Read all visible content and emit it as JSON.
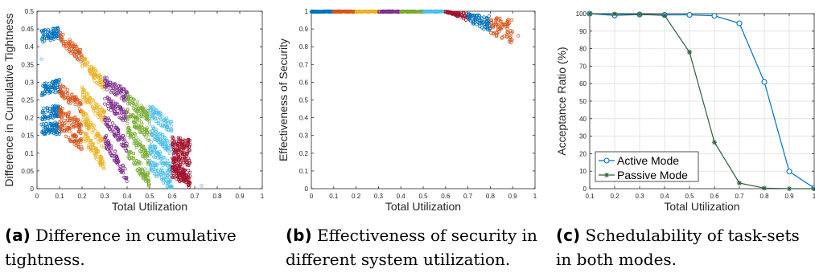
{
  "charts": [
    {
      "id": "a",
      "type": "scatter",
      "xlabel": "Total Utilization",
      "ylabel": "Difference in Cumulative Tightness",
      "xlim": [
        0,
        1
      ],
      "ylim": [
        0,
        0.5
      ],
      "xticks": [
        "0",
        "0.1",
        "0.2",
        "0.3",
        "0.4",
        "0.5",
        "0.6",
        "0.7",
        "0.8",
        "0.9",
        "1"
      ],
      "yticks": [
        "0",
        "0.05",
        "0.1",
        "0.15",
        "0.2",
        "0.25",
        "0.3",
        "0.35",
        "0.4",
        "0.45",
        "0.5"
      ],
      "grid": false,
      "bins": [
        {
          "range": [
            0.02,
            0.1
          ],
          "color": "#0072BD",
          "bands": [
            [
              0.43,
              0.44
            ],
            [
              0.28,
              0.29
            ],
            [
              0.21,
              0.22
            ],
            [
              0.17,
              0.17
            ]
          ]
        },
        {
          "range": [
            0.1,
            0.2
          ],
          "color": "#D95319",
          "bands": [
            [
              0.43,
              0.37
            ],
            [
              0.28,
              0.23
            ],
            [
              0.22,
              0.17
            ],
            [
              0.18,
              0.12
            ]
          ]
        },
        {
          "range": [
            0.2,
            0.3
          ],
          "color": "#EDB120",
          "bands": [
            [
              0.36,
              0.29
            ],
            [
              0.27,
              0.2
            ],
            [
              0.21,
              0.12
            ],
            [
              0.16,
              0.06
            ]
          ]
        },
        {
          "range": [
            0.3,
            0.4
          ],
          "color": "#7E2F8E",
          "bands": [
            [
              0.3,
              0.26
            ],
            [
              0.25,
              0.2
            ],
            [
              0.2,
              0.12
            ],
            [
              0.14,
              0.03
            ]
          ]
        },
        {
          "range": [
            0.4,
            0.5
          ],
          "color": "#77AC30",
          "bands": [
            [
              0.25,
              0.2
            ],
            [
              0.21,
              0.15
            ],
            [
              0.17,
              0.08
            ],
            [
              0.11,
              0.02
            ]
          ]
        },
        {
          "range": [
            0.5,
            0.6
          ],
          "color": "#4DBEEE",
          "bands": [
            [
              0.22,
              0.17
            ],
            [
              0.17,
              0.11
            ],
            [
              0.12,
              0.05
            ],
            [
              0.07,
              0.01
            ]
          ]
        },
        {
          "range": [
            0.6,
            0.68
          ],
          "color": "#A2142F",
          "bands": [
            [
              0.13,
              0.12
            ],
            [
              0.1,
              0.08
            ],
            [
              0.07,
              0.03
            ],
            [
              0.05,
              0.02
            ]
          ]
        }
      ],
      "outliers": [
        [
          0.02,
          0.365
        ],
        [
          0.73,
          0.008
        ]
      ]
    },
    {
      "id": "b",
      "type": "scatter",
      "xlabel": "Total Utilization",
      "ylabel": "Effectiveness of Security",
      "xlim": [
        0,
        1
      ],
      "ylim": [
        0,
        1
      ],
      "xticks": [
        "0",
        "0.1",
        "0.2",
        "0.3",
        "0.4",
        "0.5",
        "0.6",
        "0.7",
        "0.8",
        "0.9",
        "1"
      ],
      "yticks": [
        "0",
        "0.1",
        "0.2",
        "0.3",
        "0.4",
        "0.5",
        "0.6",
        "0.7",
        "0.8",
        "0.9",
        "1"
      ],
      "grid": false,
      "bins": [
        {
          "range": [
            0,
            0.1
          ],
          "color": "#0072BD"
        },
        {
          "range": [
            0.1,
            0.2
          ],
          "color": "#D95319"
        },
        {
          "range": [
            0.2,
            0.3
          ],
          "color": "#EDB120"
        },
        {
          "range": [
            0.3,
            0.4
          ],
          "color": "#7E2F8E"
        },
        {
          "range": [
            0.4,
            0.5
          ],
          "color": "#77AC30"
        },
        {
          "range": [
            0.5,
            0.6
          ],
          "color": "#4DBEEE"
        },
        {
          "range": [
            0.6,
            0.7
          ],
          "color": "#A2142F"
        },
        {
          "range": [
            0.7,
            0.8
          ],
          "color": "#0072BD"
        },
        {
          "range": [
            0.8,
            0.9
          ],
          "color": "#D95319"
        }
      ]
    },
    {
      "id": "c",
      "type": "line",
      "xlabel": "Total Utilization",
      "ylabel": "Acceptance Ratio (%)",
      "xlim": [
        0.1,
        1
      ],
      "ylim": [
        0,
        100
      ],
      "xticks": [
        "0.1",
        "0.2",
        "0.3",
        "0.4",
        "0.5",
        "0.6",
        "0.7",
        "0.8",
        "0.9",
        "1"
      ],
      "yticks": [
        "0",
        "10",
        "20",
        "30",
        "40",
        "50",
        "60",
        "70",
        "80",
        "90",
        "100"
      ],
      "grid": true,
      "x": [
        0.1,
        0.2,
        0.3,
        0.4,
        0.5,
        0.6,
        0.7,
        0.8,
        0.9,
        1.0
      ],
      "series": [
        {
          "name": "Active Mode",
          "color": "#0072BD",
          "marker": "circle",
          "values": [
            100,
            99,
            99.5,
            99.3,
            99.3,
            98.8,
            94.5,
            61,
            9.8,
            0.4
          ]
        },
        {
          "name": "Passive Mode",
          "color": "#2E5E3E",
          "marker": "star",
          "values": [
            100,
            99.8,
            99.6,
            99,
            78,
            26.5,
            3.2,
            0.3,
            0,
            0
          ]
        }
      ],
      "legend_position": "bottom-left"
    }
  ],
  "captions": [
    {
      "label": "(a)",
      "line1": " Difference in cumulative",
      "line2": "tightness."
    },
    {
      "label": "(b)",
      "line1": " Effectiveness of security in",
      "line2": "different system utilization."
    },
    {
      "label": "(c)",
      "line1": " Schedulability of task-sets",
      "line2": "in both modes."
    }
  ]
}
